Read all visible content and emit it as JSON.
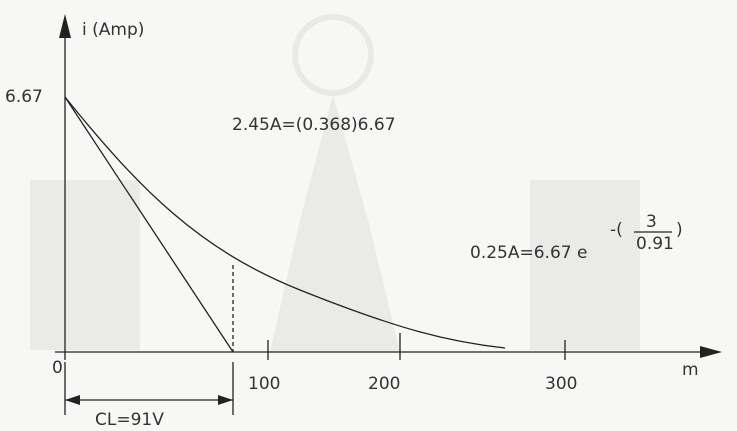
{
  "axes": {
    "y_label": "i (Amp)",
    "x_label": "m",
    "origin": "0",
    "y_tick": "6.67",
    "x_ticks": [
      "100",
      "200",
      "300"
    ]
  },
  "annotations": {
    "tangent_point": "2.45A=(0.368)6.67",
    "curve_formula": "0.25A=6.67  e",
    "exponent_sign": "-(",
    "exponent_numerator": "3",
    "exponent_denominator": "0.91",
    "exponent_close": ")",
    "span": "CL=91V"
  }
}
